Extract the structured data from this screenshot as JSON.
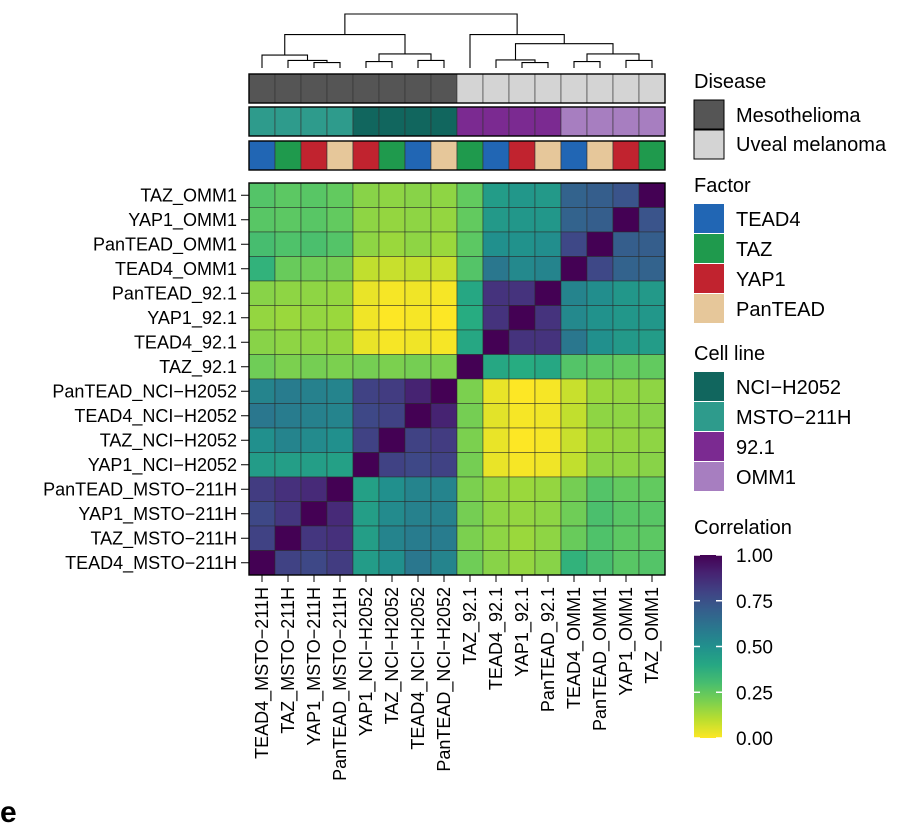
{
  "panel_label": "e",
  "chart_data": {
    "type": "heatmap",
    "title": "",
    "samples_x": [
      "TEAD4_MSTO-211H",
      "TAZ_MSTO-211H",
      "YAP1_MSTO-211H",
      "PanTEAD_MSTO-211H",
      "YAP1_NCI-H2052",
      "TAZ_NCI-H2052",
      "TEAD4_NCI-H2052",
      "PanTEAD_NCI-H2052",
      "TAZ_92.1",
      "TEAD4_92.1",
      "YAP1_92.1",
      "PanTEAD_92.1",
      "TEAD4_OMM1",
      "PanTEAD_OMM1",
      "YAP1_OMM1",
      "TAZ_OMM1"
    ],
    "samples_y_top_to_bottom": [
      "TAZ_OMM1",
      "YAP1_OMM1",
      "PanTEAD_OMM1",
      "TEAD4_OMM1",
      "PanTEAD_92.1",
      "YAP1_92.1",
      "TEAD4_92.1",
      "TAZ_92.1",
      "PanTEAD_NCI-H2052",
      "TEAD4_NCI-H2052",
      "TAZ_NCI-H2052",
      "YAP1_NCI-H2052",
      "PanTEAD_MSTO-211H",
      "YAP1_MSTO-211H",
      "TAZ_MSTO-211H",
      "TEAD4_MSTO-211H"
    ],
    "matrix_rows_top_to_bottom": [
      [
        0.27,
        0.25,
        0.26,
        0.24,
        0.18,
        0.17,
        0.18,
        0.17,
        0.24,
        0.45,
        0.47,
        0.46,
        0.68,
        0.7,
        0.74,
        1.0
      ],
      [
        0.26,
        0.25,
        0.26,
        0.24,
        0.17,
        0.16,
        0.17,
        0.16,
        0.24,
        0.46,
        0.47,
        0.47,
        0.68,
        0.7,
        1.0,
        0.74
      ],
      [
        0.3,
        0.28,
        0.29,
        0.27,
        0.17,
        0.15,
        0.17,
        0.15,
        0.25,
        0.5,
        0.49,
        0.51,
        0.78,
        1.0,
        0.7,
        0.7
      ],
      [
        0.35,
        0.23,
        0.22,
        0.21,
        0.09,
        0.08,
        0.09,
        0.08,
        0.27,
        0.6,
        0.53,
        0.55,
        1.0,
        0.78,
        0.68,
        0.68
      ],
      [
        0.18,
        0.17,
        0.17,
        0.16,
        0.03,
        0.01,
        0.02,
        0.01,
        0.4,
        0.85,
        0.85,
        1.0,
        0.55,
        0.51,
        0.47,
        0.46
      ],
      [
        0.16,
        0.15,
        0.16,
        0.15,
        0.02,
        0.0,
        0.01,
        0.0,
        0.38,
        0.85,
        1.0,
        0.85,
        0.53,
        0.49,
        0.47,
        0.47
      ],
      [
        0.18,
        0.17,
        0.17,
        0.16,
        0.03,
        0.01,
        0.02,
        0.01,
        0.4,
        1.0,
        0.85,
        0.85,
        0.6,
        0.5,
        0.46,
        0.45
      ],
      [
        0.22,
        0.2,
        0.21,
        0.2,
        0.21,
        0.2,
        0.21,
        0.2,
        1.0,
        0.4,
        0.38,
        0.4,
        0.27,
        0.25,
        0.24,
        0.24
      ],
      [
        0.55,
        0.58,
        0.56,
        0.55,
        0.8,
        0.82,
        0.9,
        1.0,
        0.2,
        0.03,
        0.0,
        0.01,
        0.08,
        0.15,
        0.16,
        0.17
      ],
      [
        0.6,
        0.58,
        0.56,
        0.55,
        0.78,
        0.8,
        1.0,
        0.9,
        0.21,
        0.04,
        0.01,
        0.02,
        0.09,
        0.17,
        0.17,
        0.18
      ],
      [
        0.5,
        0.55,
        0.52,
        0.5,
        0.8,
        1.0,
        0.8,
        0.82,
        0.2,
        0.03,
        0.0,
        0.01,
        0.08,
        0.15,
        0.16,
        0.17
      ],
      [
        0.45,
        0.44,
        0.44,
        0.43,
        1.0,
        0.8,
        0.78,
        0.8,
        0.21,
        0.03,
        0.01,
        0.02,
        0.09,
        0.17,
        0.17,
        0.18
      ],
      [
        0.82,
        0.86,
        0.88,
        1.0,
        0.43,
        0.5,
        0.55,
        0.55,
        0.2,
        0.16,
        0.15,
        0.16,
        0.21,
        0.27,
        0.24,
        0.24
      ],
      [
        0.78,
        0.84,
        1.0,
        0.88,
        0.44,
        0.52,
        0.56,
        0.56,
        0.21,
        0.17,
        0.16,
        0.17,
        0.22,
        0.29,
        0.26,
        0.26
      ],
      [
        0.8,
        1.0,
        0.84,
        0.86,
        0.44,
        0.55,
        0.58,
        0.58,
        0.2,
        0.17,
        0.15,
        0.17,
        0.23,
        0.28,
        0.25,
        0.25
      ],
      [
        1.0,
        0.8,
        0.78,
        0.82,
        0.45,
        0.5,
        0.6,
        0.55,
        0.22,
        0.18,
        0.16,
        0.18,
        0.35,
        0.3,
        0.26,
        0.27
      ]
    ],
    "annotation_tracks": {
      "disease": [
        "Mesothelioma",
        "Mesothelioma",
        "Mesothelioma",
        "Mesothelioma",
        "Mesothelioma",
        "Mesothelioma",
        "Mesothelioma",
        "Mesothelioma",
        "Uveal melanoma",
        "Uveal melanoma",
        "Uveal melanoma",
        "Uveal melanoma",
        "Uveal melanoma",
        "Uveal melanoma",
        "Uveal melanoma",
        "Uveal melanoma"
      ],
      "cell_line": [
        "MSTO-211H",
        "MSTO-211H",
        "MSTO-211H",
        "MSTO-211H",
        "NCI-H2052",
        "NCI-H2052",
        "NCI-H2052",
        "NCI-H2052",
        "92.1",
        "92.1",
        "92.1",
        "92.1",
        "OMM1",
        "OMM1",
        "OMM1",
        "OMM1"
      ],
      "factor": [
        "TEAD4",
        "TAZ",
        "YAP1",
        "PanTEAD",
        "YAP1",
        "TAZ",
        "TEAD4",
        "PanTEAD",
        "TAZ",
        "TEAD4",
        "YAP1",
        "PanTEAD",
        "TEAD4",
        "PanTEAD",
        "YAP1",
        "TAZ"
      ]
    },
    "dendrogram_merges": [
      [
        2,
        3,
        0.1
      ],
      [
        1,
        16,
        0.14
      ],
      [
        0,
        17,
        0.24
      ],
      [
        4,
        5,
        0.12
      ],
      [
        6,
        7,
        0.14
      ],
      [
        19,
        20,
        0.26
      ],
      [
        18,
        21,
        0.62
      ],
      [
        10,
        11,
        0.1
      ],
      [
        9,
        23,
        0.15
      ],
      [
        12,
        13,
        0.12
      ],
      [
        14,
        15,
        0.14
      ],
      [
        25,
        26,
        0.26
      ],
      [
        24,
        27,
        0.45
      ],
      [
        8,
        28,
        0.62
      ],
      [
        22,
        29,
        1.0
      ]
    ],
    "legend": {
      "disease": {
        "title": "Disease",
        "items": [
          {
            "label": "Mesothelioma",
            "color": "#555555"
          },
          {
            "label": "Uveal melanoma",
            "color": "#d4d4d4"
          }
        ]
      },
      "factor": {
        "title": "Factor",
        "items": [
          {
            "label": "TEAD4",
            "color": "#2166b4"
          },
          {
            "label": "TAZ",
            "color": "#1f9a4d"
          },
          {
            "label": "YAP1",
            "color": "#c1232f"
          },
          {
            "label": "PanTEAD",
            "color": "#e6c79a"
          }
        ]
      },
      "cell_line": {
        "title": "Cell line",
        "items": [
          {
            "label": "NCI−H2052",
            "key": "NCI-H2052",
            "color": "#11665e"
          },
          {
            "label": "MSTO−211H",
            "key": "MSTO-211H",
            "color": "#2e9b8c"
          },
          {
            "label": "92.1",
            "key": "92.1",
            "color": "#7b2a91"
          },
          {
            "label": "OMM1",
            "key": "OMM1",
            "color": "#a77ec0"
          }
        ]
      },
      "correlation": {
        "title": "Correlation",
        "ticks": [
          1.0,
          0.75,
          0.5,
          0.25,
          0.0
        ],
        "tick_labels": [
          "1.00",
          "0.75",
          "0.50",
          "0.25",
          "0.00"
        ],
        "range": [
          0,
          1
        ],
        "colormap": "viridis"
      }
    }
  }
}
